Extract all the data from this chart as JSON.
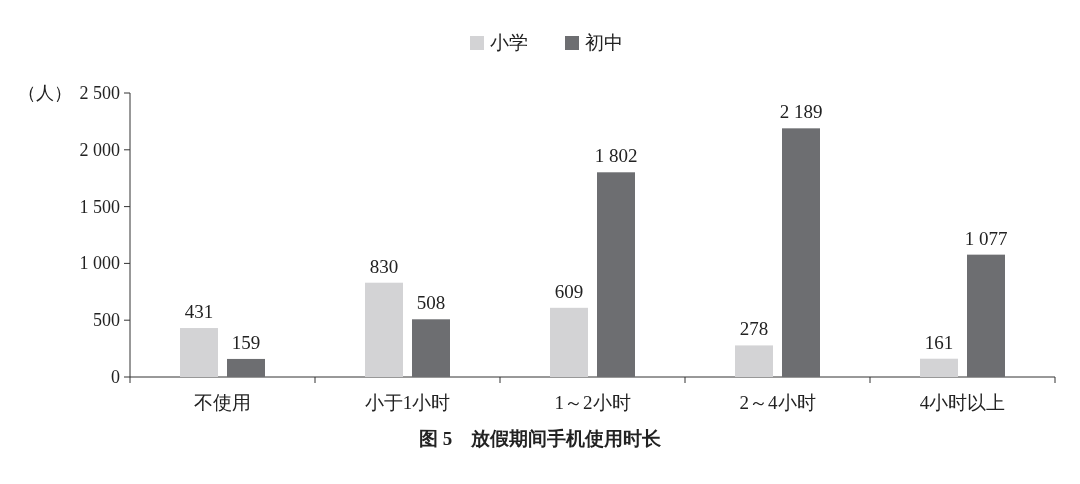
{
  "chart_data": {
    "type": "bar",
    "title": "图 5　放假期间手机使用时长",
    "ylabel": "（人）",
    "categories": [
      "不使用",
      "小于1小时",
      "1～2小时",
      "2～4小时",
      "4小时以上"
    ],
    "series": [
      {
        "name": "小学",
        "color": "#d3d3d5",
        "values": [
          431,
          830,
          609,
          278,
          161
        ],
        "value_labels": [
          "431",
          "830",
          "609",
          "278",
          "161"
        ]
      },
      {
        "name": "初中",
        "color": "#6d6e71",
        "values": [
          159,
          508,
          1802,
          2189,
          1077
        ],
        "value_labels": [
          "159",
          "508",
          "1 802",
          "2 189",
          "1 077"
        ]
      }
    ],
    "ylim": [
      0,
      2500
    ],
    "yticks": [
      0,
      500,
      {
        "value": 1000,
        "label": "1 000"
      },
      {
        "value": 1500,
        "label": "1 500"
      },
      {
        "value": 2000,
        "label": "2 000"
      },
      {
        "value": 2500,
        "label": "2 500"
      }
    ],
    "legend": "top",
    "grid": false
  }
}
